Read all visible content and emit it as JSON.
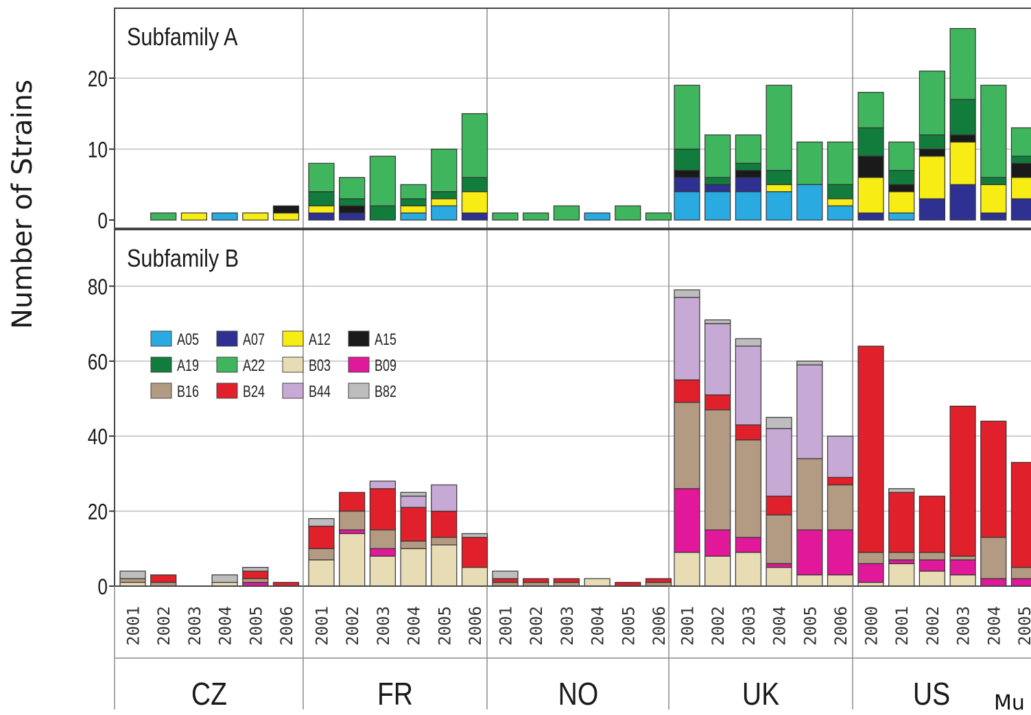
{
  "chart_data": {
    "type": "bar",
    "stacked": true,
    "ylabel": "Number of Strains",
    "countries": [
      "CZ",
      "FR",
      "NO",
      "UK",
      "US"
    ],
    "years": {
      "CZ": [
        "2001",
        "2002",
        "2003",
        "2004",
        "2005",
        "2006"
      ],
      "FR": [
        "2001",
        "2002",
        "2003",
        "2004",
        "2005",
        "2006"
      ],
      "NO": [
        "2001",
        "2002",
        "2003",
        "2004",
        "2005",
        "2006"
      ],
      "UK": [
        "2001",
        "2002",
        "2003",
        "2004",
        "2005",
        "2006"
      ],
      "US": [
        "2000",
        "2001",
        "2002",
        "2003",
        "2004",
        "2005"
      ]
    },
    "legend": [
      {
        "code": "A05",
        "color": "#29abe2"
      },
      {
        "code": "A07",
        "color": "#2e3192"
      },
      {
        "code": "A12",
        "color": "#f7ec13"
      },
      {
        "code": "A15",
        "color": "#1a1a1a"
      },
      {
        "code": "A19",
        "color": "#117c3c"
      },
      {
        "code": "A22",
        "color": "#3fb55e"
      },
      {
        "code": "B03",
        "color": "#e8dcb5"
      },
      {
        "code": "B09",
        "color": "#e2189a"
      },
      {
        "code": "B16",
        "color": "#b39a82"
      },
      {
        "code": "B24",
        "color": "#e0202a"
      },
      {
        "code": "B44",
        "color": "#c7a9d6"
      },
      {
        "code": "B82",
        "color": "#bdbdbd"
      }
    ],
    "panels": [
      {
        "title": "Subfamily A",
        "ylim": [
          0,
          30
        ],
        "yticks": [
          0,
          10,
          20
        ],
        "stack_order": [
          "A05",
          "A07",
          "A12",
          "A15",
          "A19",
          "A22"
        ],
        "bars": [
          [
            [
              0,
              0,
              0,
              0,
              0,
              0
            ],
            [
              0,
              0,
              0,
              0,
              0,
              1
            ],
            [
              0,
              0,
              1,
              0,
              0,
              0
            ],
            [
              1,
              0,
              0,
              0,
              0,
              0
            ],
            [
              0,
              0,
              1,
              0,
              0,
              0
            ],
            [
              0,
              0,
              1,
              1,
              0,
              0
            ]
          ],
          [
            [
              0,
              1,
              1,
              0,
              2,
              4
            ],
            [
              0,
              1,
              0,
              1,
              1,
              3
            ],
            [
              0,
              0,
              0,
              0,
              2,
              7
            ],
            [
              1,
              0,
              1,
              0,
              1,
              2
            ],
            [
              2,
              0,
              1,
              0,
              1,
              6
            ],
            [
              0,
              1,
              3,
              0,
              2,
              9
            ]
          ],
          [
            [
              0,
              0,
              0,
              0,
              0,
              1
            ],
            [
              0,
              0,
              0,
              0,
              0,
              1
            ],
            [
              0,
              0,
              0,
              0,
              0,
              2
            ],
            [
              1,
              0,
              0,
              0,
              0,
              0
            ],
            [
              0,
              0,
              0,
              0,
              0,
              2
            ],
            [
              0,
              0,
              0,
              0,
              0,
              1
            ]
          ],
          [
            [
              4,
              2,
              0,
              1,
              3,
              9
            ],
            [
              4,
              1,
              0,
              0,
              1,
              6
            ],
            [
              4,
              2,
              0,
              1,
              1,
              4
            ],
            [
              4,
              0,
              1,
              0,
              2,
              12
            ],
            [
              5,
              0,
              0,
              0,
              0,
              6
            ],
            [
              2,
              0,
              1,
              0,
              2,
              6
            ]
          ],
          [
            [
              0,
              1,
              5,
              3,
              4,
              5
            ],
            [
              1,
              0,
              3,
              1,
              2,
              4
            ],
            [
              0,
              3,
              6,
              1,
              2,
              9
            ],
            [
              0,
              5,
              6,
              1,
              5,
              10
            ],
            [
              0,
              1,
              4,
              0,
              1,
              13
            ],
            [
              0,
              3,
              3,
              2,
              1,
              4
            ]
          ]
        ]
      },
      {
        "title": "Subfamily B",
        "ylim": [
          0,
          90
        ],
        "yticks": [
          0,
          20,
          40,
          60,
          80
        ],
        "stack_order": [
          "B03",
          "B09",
          "B16",
          "B24",
          "B44",
          "B82"
        ],
        "bars": [
          [
            [
              1,
              0,
              1,
              0,
              0,
              2
            ],
            [
              0,
              0,
              1,
              2,
              0,
              0
            ],
            [
              0,
              0,
              0,
              0,
              0,
              0
            ],
            [
              1,
              0,
              0,
              0,
              0,
              2
            ],
            [
              0,
              1,
              1,
              2,
              0,
              1
            ],
            [
              0,
              0,
              0,
              1,
              0,
              0
            ]
          ],
          [
            [
              7,
              0,
              3,
              6,
              0,
              2
            ],
            [
              14,
              1,
              5,
              5,
              0,
              0
            ],
            [
              8,
              2,
              5,
              11,
              2,
              0
            ],
            [
              10,
              0,
              2,
              9,
              3,
              1
            ],
            [
              11,
              0,
              2,
              7,
              7,
              0
            ],
            [
              5,
              0,
              0,
              8,
              0,
              1
            ]
          ],
          [
            [
              0,
              0,
              1,
              1,
              0,
              2
            ],
            [
              0,
              0,
              1,
              1,
              0,
              0
            ],
            [
              0,
              0,
              1,
              1,
              0,
              0
            ],
            [
              2,
              0,
              0,
              0,
              0,
              0
            ],
            [
              0,
              0,
              0,
              1,
              0,
              0
            ],
            [
              0,
              0,
              1,
              1,
              0,
              0
            ]
          ],
          [
            [
              9,
              17,
              23,
              6,
              22,
              2
            ],
            [
              8,
              7,
              32,
              4,
              19,
              1
            ],
            [
              9,
              4,
              26,
              4,
              21,
              2
            ],
            [
              5,
              1,
              13,
              5,
              18,
              3
            ],
            [
              3,
              12,
              19,
              0,
              25,
              1
            ],
            [
              3,
              12,
              12,
              2,
              11,
              0
            ]
          ],
          [
            [
              1,
              5,
              3,
              55,
              0,
              0
            ],
            [
              6,
              1,
              2,
              16,
              0,
              1
            ],
            [
              4,
              3,
              2,
              15,
              0,
              0
            ],
            [
              3,
              4,
              1,
              40,
              0,
              0
            ],
            [
              0,
              2,
              11,
              31,
              0,
              0
            ],
            [
              0,
              2,
              3,
              28,
              0,
              0
            ]
          ]
        ]
      }
    ]
  },
  "cropped_label": "Mu"
}
